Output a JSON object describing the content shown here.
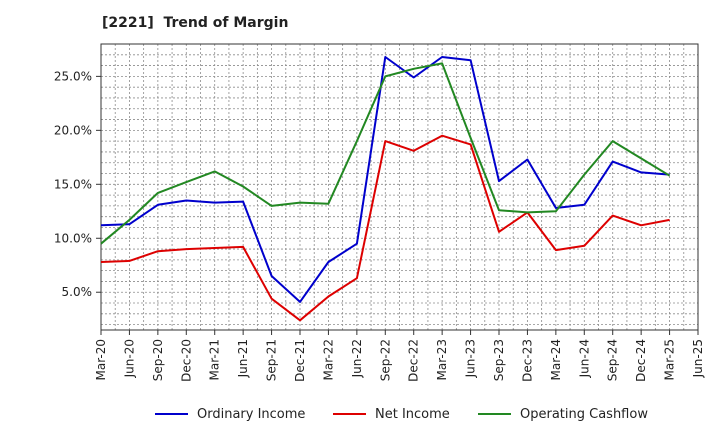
{
  "title": "[2221]  Trend of Margin",
  "chart_data": {
    "type": "line",
    "x": [
      "Mar-20",
      "Jun-20",
      "Sep-20",
      "Dec-20",
      "Mar-21",
      "Jun-21",
      "Sep-21",
      "Dec-21",
      "Mar-22",
      "Jun-22",
      "Sep-22",
      "Dec-22",
      "Mar-23",
      "Jun-23",
      "Sep-23",
      "Dec-23",
      "Mar-24",
      "Jun-24",
      "Sep-24",
      "Dec-24",
      "Mar-25",
      "Jun-25"
    ],
    "ylim": [
      1.5,
      28
    ],
    "yticks": [
      5.0,
      10.0,
      15.0,
      20.0,
      25.0
    ],
    "ytick_labels": [
      "5.0%",
      "10.0%",
      "15.0%",
      "20.0%",
      "25.0%"
    ],
    "grid": true,
    "legend_position": "bottom",
    "series": [
      {
        "name": "Ordinary Income",
        "color": "#0000cc",
        "values": [
          11.2,
          11.3,
          13.1,
          13.5,
          13.3,
          13.4,
          6.5,
          4.1,
          7.8,
          9.5,
          26.8,
          24.9,
          26.8,
          26.5,
          15.3,
          17.3,
          12.8,
          13.1,
          17.1,
          16.1,
          15.9,
          null
        ]
      },
      {
        "name": "Net Income",
        "color": "#dd0000",
        "values": [
          7.8,
          7.9,
          8.8,
          9.0,
          9.1,
          9.2,
          4.4,
          2.4,
          4.6,
          6.3,
          19.0,
          18.1,
          19.5,
          18.7,
          10.6,
          12.4,
          8.9,
          9.3,
          12.1,
          11.2,
          11.7,
          null
        ]
      },
      {
        "name": "Operating Cashflow",
        "color": "#228822",
        "values": [
          9.5,
          11.7,
          14.2,
          15.2,
          16.2,
          14.8,
          13.0,
          13.3,
          13.2,
          19.0,
          25.0,
          25.7,
          26.2,
          19.3,
          12.6,
          12.4,
          12.5,
          15.9,
          19.0,
          17.4,
          15.8,
          null
        ]
      }
    ]
  }
}
